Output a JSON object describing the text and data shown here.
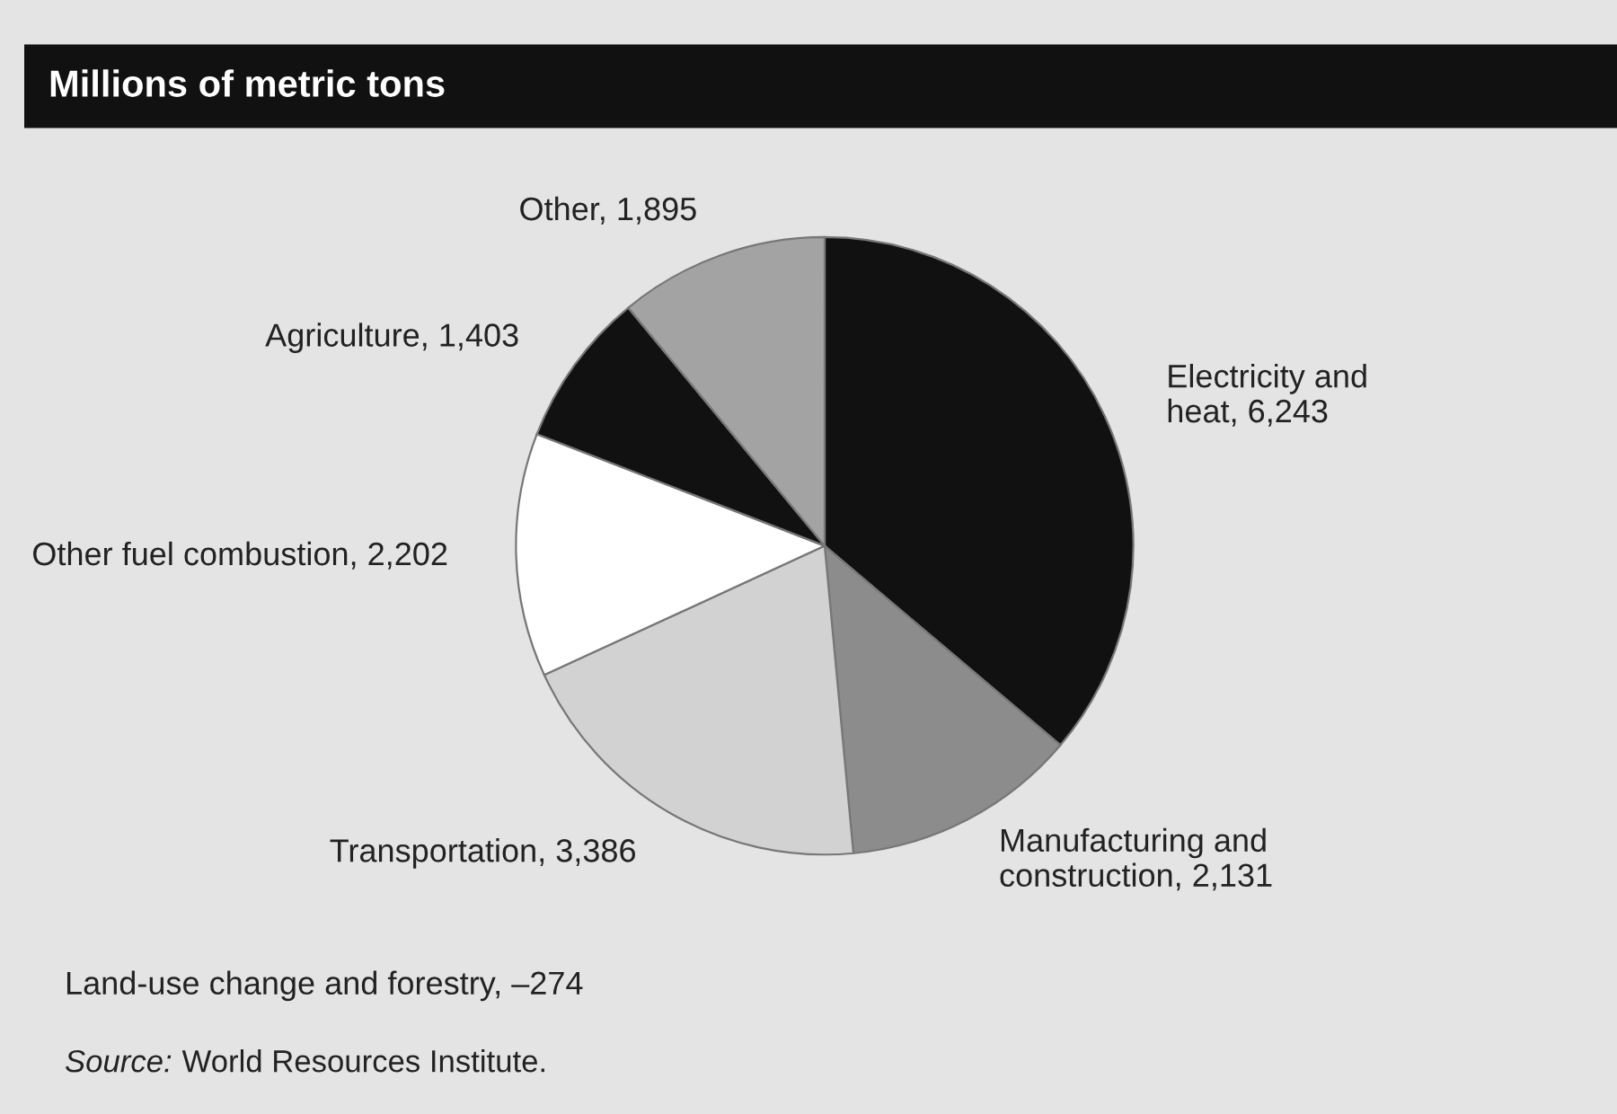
{
  "chart_data": {
    "type": "pie",
    "title": "Millions of metric tons",
    "categories": [
      "Electricity and\nheat",
      "Manufacturing and\nconstruction",
      "Transportation",
      "Other fuel combustion",
      "Agriculture",
      "Other"
    ],
    "values": [
      6243,
      2131,
      3386,
      2202,
      1403,
      1895
    ],
    "value_labels": [
      "6,243",
      "2,131",
      "3,386",
      "2,202",
      "1,403",
      "1,895"
    ],
    "colors": [
      "#111111",
      "#8c8c8c",
      "#d2d2d2",
      "#ffffff",
      "#111111",
      "#a3a3a3"
    ],
    "annotations": [
      "Land-use change and forestry, –274",
      "Source: World Resources Institute."
    ]
  }
}
